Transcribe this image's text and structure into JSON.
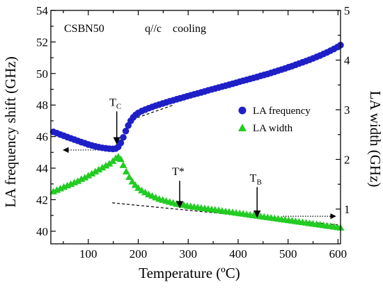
{
  "chart_data": {
    "type": "scatter",
    "title": "CSBN50",
    "subtitle": "q//c    cooling",
    "xlabel": "Temperature (ºC)",
    "ylabel_left": "LA frequency shift (GHz)",
    "ylabel_right": "LA width (GHz)",
    "xlim": [
      25,
      605
    ],
    "ylim_left": [
      39.2,
      54
    ],
    "ylim_right": [
      0.3,
      5
    ],
    "x_ticks": [
      100,
      200,
      300,
      400,
      500,
      600
    ],
    "y_left_ticks": [
      40,
      42,
      44,
      46,
      48,
      50,
      52,
      54
    ],
    "y_right_ticks": [
      1,
      2,
      3,
      4,
      5
    ],
    "grid": false,
    "legend_position": "right-middle",
    "series": [
      {
        "name": "LA frequency",
        "axis": "left",
        "marker": "circle",
        "color": "#1f1fc8",
        "points": [
          [
            30,
            46.3
          ],
          [
            37,
            46.22
          ],
          [
            44,
            46.13
          ],
          [
            51,
            46.05
          ],
          [
            58,
            45.97
          ],
          [
            65,
            45.89
          ],
          [
            72,
            45.81
          ],
          [
            79,
            45.73
          ],
          [
            86,
            45.65
          ],
          [
            93,
            45.58
          ],
          [
            100,
            45.5
          ],
          [
            107,
            45.44
          ],
          [
            114,
            45.38
          ],
          [
            121,
            45.33
          ],
          [
            128,
            45.29
          ],
          [
            135,
            45.26
          ],
          [
            142,
            45.23
          ],
          [
            149,
            45.22
          ],
          [
            155,
            45.24
          ],
          [
            160,
            45.35
          ],
          [
            165,
            45.6
          ],
          [
            170,
            45.95
          ],
          [
            175,
            46.35
          ],
          [
            180,
            46.7
          ],
          [
            185,
            47.0
          ],
          [
            190,
            47.22
          ],
          [
            195,
            47.38
          ],
          [
            200,
            47.5
          ],
          [
            207,
            47.62
          ],
          [
            214,
            47.71
          ],
          [
            221,
            47.8
          ],
          [
            228,
            47.88
          ],
          [
            235,
            47.96
          ],
          [
            242,
            48.03
          ],
          [
            249,
            48.1
          ],
          [
            256,
            48.17
          ],
          [
            263,
            48.24
          ],
          [
            270,
            48.3
          ],
          [
            277,
            48.37
          ],
          [
            284,
            48.43
          ],
          [
            291,
            48.49
          ],
          [
            298,
            48.56
          ],
          [
            305,
            48.62
          ],
          [
            312,
            48.68
          ],
          [
            319,
            48.74
          ],
          [
            326,
            48.8
          ],
          [
            333,
            48.86
          ],
          [
            340,
            48.93
          ],
          [
            347,
            48.99
          ],
          [
            354,
            49.05
          ],
          [
            361,
            49.11
          ],
          [
            368,
            49.17
          ],
          [
            375,
            49.23
          ],
          [
            382,
            49.29
          ],
          [
            389,
            49.35
          ],
          [
            396,
            49.41
          ],
          [
            403,
            49.48
          ],
          [
            410,
            49.54
          ],
          [
            417,
            49.6
          ],
          [
            424,
            49.66
          ],
          [
            431,
            49.72
          ],
          [
            438,
            49.78
          ],
          [
            445,
            49.85
          ],
          [
            452,
            49.91
          ],
          [
            459,
            49.97
          ],
          [
            466,
            50.04
          ],
          [
            473,
            50.11
          ],
          [
            480,
            50.18
          ],
          [
            487,
            50.25
          ],
          [
            494,
            50.32
          ],
          [
            501,
            50.4
          ],
          [
            508,
            50.47
          ],
          [
            515,
            50.55
          ],
          [
            522,
            50.63
          ],
          [
            529,
            50.71
          ],
          [
            536,
            50.79
          ],
          [
            543,
            50.87
          ],
          [
            550,
            50.96
          ],
          [
            557,
            51.05
          ],
          [
            564,
            51.14
          ],
          [
            571,
            51.24
          ],
          [
            578,
            51.34
          ],
          [
            585,
            51.45
          ],
          [
            592,
            51.56
          ],
          [
            599,
            51.68
          ],
          [
            605,
            51.8
          ]
        ]
      },
      {
        "name": "LA width",
        "axis": "right",
        "marker": "triangle",
        "color": "#22cc22",
        "points": [
          [
            30,
            1.35
          ],
          [
            37,
            1.38
          ],
          [
            44,
            1.41
          ],
          [
            51,
            1.44
          ],
          [
            58,
            1.47
          ],
          [
            65,
            1.5
          ],
          [
            72,
            1.53
          ],
          [
            79,
            1.56
          ],
          [
            86,
            1.6
          ],
          [
            93,
            1.63
          ],
          [
            100,
            1.67
          ],
          [
            107,
            1.71
          ],
          [
            114,
            1.75
          ],
          [
            121,
            1.79
          ],
          [
            128,
            1.83
          ],
          [
            135,
            1.87
          ],
          [
            142,
            1.91
          ],
          [
            149,
            1.96
          ],
          [
            155,
            2.02
          ],
          [
            160,
            2.05
          ],
          [
            165,
            2.0
          ],
          [
            170,
            1.88
          ],
          [
            176,
            1.75
          ],
          [
            182,
            1.64
          ],
          [
            188,
            1.55
          ],
          [
            194,
            1.48
          ],
          [
            200,
            1.42
          ],
          [
            207,
            1.37
          ],
          [
            214,
            1.33
          ],
          [
            221,
            1.29
          ],
          [
            228,
            1.26
          ],
          [
            235,
            1.23
          ],
          [
            242,
            1.2
          ],
          [
            249,
            1.18
          ],
          [
            256,
            1.16
          ],
          [
            263,
            1.14
          ],
          [
            270,
            1.12
          ],
          [
            277,
            1.1
          ],
          [
            284,
            1.09
          ],
          [
            291,
            1.08
          ],
          [
            298,
            1.06
          ],
          [
            305,
            1.05
          ],
          [
            312,
            1.04
          ],
          [
            319,
            1.03
          ],
          [
            326,
            1.02
          ],
          [
            333,
            1.01
          ],
          [
            340,
            1.0
          ],
          [
            347,
            0.99
          ],
          [
            354,
            0.98
          ],
          [
            361,
            0.97
          ],
          [
            368,
            0.96
          ],
          [
            375,
            0.95
          ],
          [
            382,
            0.94
          ],
          [
            389,
            0.93
          ],
          [
            396,
            0.92
          ],
          [
            403,
            0.91
          ],
          [
            410,
            0.9
          ],
          [
            417,
            0.89
          ],
          [
            424,
            0.88
          ],
          [
            431,
            0.87
          ],
          [
            438,
            0.86
          ],
          [
            445,
            0.85
          ],
          [
            452,
            0.84
          ],
          [
            459,
            0.83
          ],
          [
            466,
            0.82
          ],
          [
            473,
            0.81
          ],
          [
            480,
            0.8
          ],
          [
            487,
            0.79
          ],
          [
            494,
            0.78
          ],
          [
            501,
            0.77
          ],
          [
            508,
            0.76
          ],
          [
            515,
            0.75
          ],
          [
            522,
            0.74
          ],
          [
            529,
            0.73
          ],
          [
            536,
            0.72
          ],
          [
            543,
            0.71
          ],
          [
            550,
            0.7
          ],
          [
            557,
            0.69
          ],
          [
            564,
            0.68
          ],
          [
            571,
            0.67
          ],
          [
            578,
            0.66
          ],
          [
            585,
            0.65
          ],
          [
            592,
            0.64
          ],
          [
            599,
            0.63
          ],
          [
            605,
            0.62
          ]
        ]
      }
    ],
    "annotations": [
      {
        "label": "T",
        "sub": "C",
        "x": 157,
        "y_arrow_top": 47.6,
        "y_arrow_bottom": 45.55
      },
      {
        "label": "T*",
        "x": 283,
        "y_arrow_top": 43.2,
        "y_arrow_bottom": 41.5
      },
      {
        "label": "T",
        "sub": "B",
        "x": 438,
        "y_arrow_top": 42.8,
        "y_arrow_bottom": 40.9
      }
    ],
    "guide_lines": [
      {
        "style": "dashed",
        "axis": "left",
        "from": [
          180,
          47.0
        ],
        "to": [
          270,
          48.0
        ]
      },
      {
        "style": "dashed",
        "axis": "left",
        "from": [
          148,
          41.8
        ],
        "to": [
          600,
          40.4
        ]
      },
      {
        "style": "dotted-arrow",
        "direction": "left",
        "axis": "left",
        "from": [
          135,
          45.15
        ],
        "to": [
          50,
          45.15
        ]
      },
      {
        "style": "dotted-arrow",
        "direction": "right",
        "axis": "left",
        "from": [
          490,
          40.95
        ],
        "to": [
          595,
          40.95
        ]
      }
    ]
  }
}
